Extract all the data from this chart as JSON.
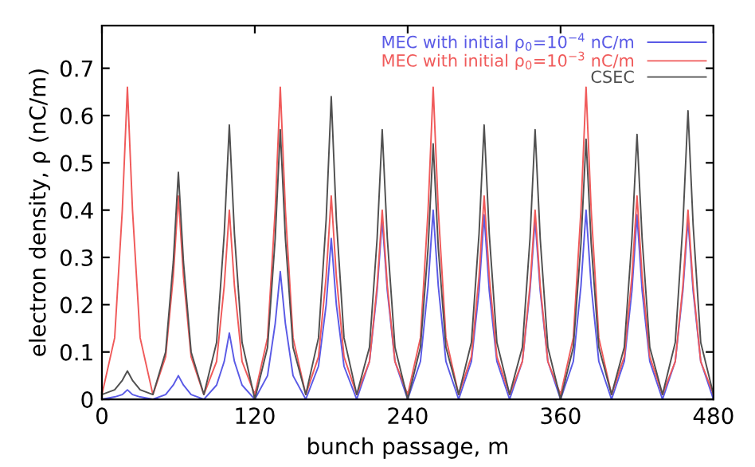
{
  "chart_data": {
    "type": "line",
    "xlabel": "bunch passage, m",
    "ylabel": "electron density, ρ (nC/m)",
    "x": [
      0,
      10,
      16,
      20,
      24,
      30,
      40,
      50,
      56,
      60,
      64,
      70,
      80,
      90,
      96,
      100,
      104,
      110,
      120,
      130,
      136,
      140,
      144,
      150,
      160,
      170,
      176,
      180,
      184,
      190,
      200,
      210,
      216,
      220,
      224,
      230,
      240,
      250,
      256,
      260,
      264,
      270,
      280,
      290,
      296,
      300,
      304,
      310,
      320,
      330,
      336,
      340,
      344,
      350,
      360,
      370,
      376,
      380,
      384,
      390,
      400,
      410,
      416,
      420,
      424,
      430,
      440,
      450,
      456,
      460,
      464,
      470,
      480
    ],
    "series": [
      {
        "name": "MEC with initial ρ$_{0}$=10$^{−4}$ nC/m",
        "color": "#5a5ae6",
        "values": [
          0,
          0.005,
          0.01,
          0.02,
          0.01,
          0.005,
          0,
          0.01,
          0.03,
          0.05,
          0.03,
          0.01,
          0,
          0.03,
          0.08,
          0.14,
          0.08,
          0.03,
          0,
          0.05,
          0.16,
          0.27,
          0.16,
          0.05,
          0,
          0.07,
          0.2,
          0.34,
          0.2,
          0.07,
          0,
          0.08,
          0.23,
          0.38,
          0.23,
          0.08,
          0,
          0.08,
          0.24,
          0.4,
          0.24,
          0.08,
          0,
          0.08,
          0.23,
          0.39,
          0.23,
          0.08,
          0,
          0.08,
          0.23,
          0.38,
          0.23,
          0.08,
          0,
          0.08,
          0.24,
          0.4,
          0.24,
          0.08,
          0,
          0.08,
          0.23,
          0.39,
          0.23,
          0.08,
          0,
          0.08,
          0.23,
          0.38,
          0.23,
          0.08,
          0
        ]
      },
      {
        "name": "MEC with initial ρ$_{0}$=10$^{−3}$ nC/m",
        "color": "#f05a5a",
        "values": [
          0.01,
          0.13,
          0.4,
          0.66,
          0.4,
          0.13,
          0.01,
          0.09,
          0.26,
          0.43,
          0.26,
          0.09,
          0.01,
          0.08,
          0.24,
          0.4,
          0.24,
          0.08,
          0.01,
          0.13,
          0.4,
          0.66,
          0.4,
          0.13,
          0.01,
          0.09,
          0.26,
          0.43,
          0.26,
          0.09,
          0.01,
          0.08,
          0.24,
          0.4,
          0.24,
          0.08,
          0.01,
          0.13,
          0.4,
          0.66,
          0.4,
          0.13,
          0.01,
          0.09,
          0.26,
          0.43,
          0.26,
          0.09,
          0.01,
          0.08,
          0.24,
          0.4,
          0.24,
          0.08,
          0.01,
          0.13,
          0.4,
          0.66,
          0.4,
          0.13,
          0.01,
          0.09,
          0.26,
          0.43,
          0.26,
          0.09,
          0.01,
          0.08,
          0.24,
          0.4,
          0.24,
          0.08,
          0.01
        ]
      },
      {
        "name": "CSEC",
        "color": "#505050",
        "values": [
          0.01,
          0.02,
          0.04,
          0.06,
          0.04,
          0.02,
          0.01,
          0.1,
          0.29,
          0.48,
          0.29,
          0.1,
          0.01,
          0.12,
          0.35,
          0.58,
          0.35,
          0.12,
          0,
          0.11,
          0.34,
          0.57,
          0.34,
          0.11,
          0.01,
          0.13,
          0.38,
          0.64,
          0.38,
          0.13,
          0.01,
          0.11,
          0.34,
          0.57,
          0.34,
          0.11,
          0,
          0.11,
          0.32,
          0.54,
          0.32,
          0.11,
          0.01,
          0.12,
          0.35,
          0.58,
          0.35,
          0.12,
          0.01,
          0.11,
          0.34,
          0.57,
          0.34,
          0.11,
          0,
          0.11,
          0.33,
          0.55,
          0.33,
          0.11,
          0.01,
          0.11,
          0.34,
          0.56,
          0.34,
          0.11,
          0.01,
          0.12,
          0.37,
          0.61,
          0.37,
          0.12,
          0.01
        ]
      }
    ],
    "xlim": [
      0,
      480
    ],
    "xticks": [
      0,
      120,
      240,
      360,
      480
    ],
    "ylim": [
      0,
      0.79
    ],
    "yticks": [
      0,
      0.1,
      0.2,
      0.3,
      0.4,
      0.5,
      0.6,
      0.7
    ],
    "grid": false,
    "legend": "top right",
    "marker": "none",
    "line_style": "solid"
  }
}
